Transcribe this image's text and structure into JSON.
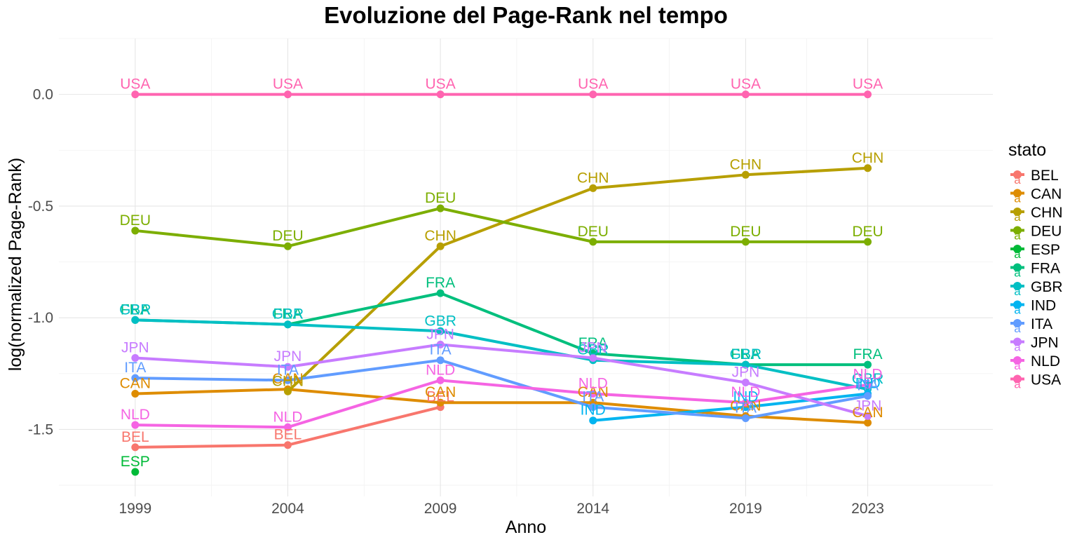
{
  "chart_data": {
    "type": "line",
    "title": "Evoluzione del Page-Rank nel tempo",
    "xlabel": "Anno",
    "ylabel": "log(normalized Page-Rank)",
    "x": [
      1999,
      2004,
      2009,
      2014,
      2019,
      2023
    ],
    "x_ticks": [
      "1999",
      "2004",
      "2009",
      "2014",
      "2019",
      "2023"
    ],
    "y_ticks": [
      "0.0",
      "-0.5",
      "-1.0",
      "-1.5"
    ],
    "y_tick_values": [
      0.0,
      -0.5,
      -1.0,
      -1.5
    ],
    "xlim": [
      1996.5,
      2027.1
    ],
    "ylim": [
      -1.8,
      0.25
    ],
    "grid": true,
    "legend": {
      "title": "stato",
      "position": "right",
      "glyph": "a"
    },
    "series": [
      {
        "name": "BEL",
        "color": "#F8766D",
        "values": [
          -1.58,
          -1.57,
          -1.4,
          null,
          null,
          null
        ]
      },
      {
        "name": "CAN",
        "color": "#DE8C00",
        "values": [
          -1.34,
          -1.32,
          -1.38,
          -1.38,
          -1.44,
          -1.47
        ]
      },
      {
        "name": "CHN",
        "color": "#B79F00",
        "values": [
          null,
          -1.33,
          -0.68,
          -0.42,
          -0.36,
          -0.33
        ]
      },
      {
        "name": "DEU",
        "color": "#7CAE00",
        "values": [
          -0.61,
          -0.68,
          -0.51,
          -0.66,
          -0.66,
          -0.66
        ]
      },
      {
        "name": "ESP",
        "color": "#00BA38",
        "values": [
          -1.69,
          null,
          null,
          null,
          null,
          null
        ]
      },
      {
        "name": "FRA",
        "color": "#00BF7D",
        "values": [
          -1.01,
          -1.03,
          -0.89,
          -1.16,
          -1.21,
          -1.21
        ]
      },
      {
        "name": "GBR",
        "color": "#00BFC4",
        "values": [
          -1.01,
          -1.03,
          -1.06,
          -1.19,
          -1.21,
          -1.32
        ]
      },
      {
        "name": "IND",
        "color": "#00B4F0",
        "values": [
          null,
          null,
          null,
          -1.46,
          -1.4,
          -1.34
        ]
      },
      {
        "name": "ITA",
        "color": "#619CFF",
        "values": [
          -1.27,
          -1.28,
          -1.19,
          -1.4,
          -1.45,
          -1.35
        ]
      },
      {
        "name": "JPN",
        "color": "#C77CFF",
        "values": [
          -1.18,
          -1.22,
          -1.12,
          -1.18,
          -1.29,
          -1.44
        ]
      },
      {
        "name": "NLD",
        "color": "#F564E3",
        "values": [
          -1.48,
          -1.49,
          -1.28,
          -1.34,
          -1.38,
          -1.3
        ]
      },
      {
        "name": "USA",
        "color": "#FF64B0",
        "values": [
          0.0,
          0.0,
          0.0,
          0.0,
          0.0,
          0.0
        ]
      }
    ]
  }
}
